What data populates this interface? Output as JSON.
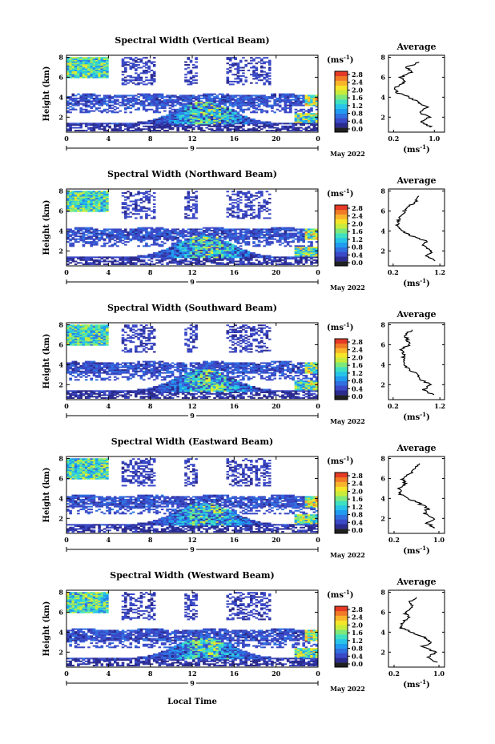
{
  "figure": {
    "xlabel": "Local Time",
    "day_label": "9",
    "date_label": "May 2022"
  },
  "colors": {
    "scale": [
      "#202020",
      "#2b2b8f",
      "#3a49c6",
      "#2f6fe0",
      "#1f9bef",
      "#28c4e8",
      "#3fe0c0",
      "#7ee87a",
      "#c8ec3c",
      "#f5e62a",
      "#f8b42a",
      "#f07a25",
      "#e53a25"
    ]
  },
  "chart_data": [
    {
      "type": "heatmap",
      "title": "Spectral Width (Vertical Beam)",
      "ylabel": "Height (km)",
      "x_ticks": [
        "0",
        "4",
        "8",
        "12",
        "16",
        "20",
        "0"
      ],
      "xlim": [
        0,
        24
      ],
      "y_ticks": [
        "2",
        "4",
        "6",
        "8"
      ],
      "ylim": [
        0.5,
        8.2
      ],
      "colorbar": {
        "unit": "(ms",
        "unit_exp": "-1",
        "unit_close": ")",
        "ticks": [
          "0.0",
          "0.4",
          "0.8",
          "1.2",
          "1.6",
          "2.0",
          "2.4",
          "2.8"
        ]
      },
      "profile": {
        "title": "Average",
        "xlabel": "(ms",
        "xlabel_exp": "-1",
        "xlabel_close": ")",
        "x_ticks": [
          "0.2",
          "1.0"
        ],
        "x_tick_values": [
          0.2,
          1.0
        ],
        "xlim": [
          0.1,
          1.2
        ],
        "y_ticks": [
          "2",
          "4",
          "6",
          "8"
        ],
        "ylim": [
          0.5,
          8.2
        ],
        "heights": [
          1.0,
          1.5,
          2.0,
          2.5,
          3.0,
          3.5,
          4.0,
          4.5,
          5.0,
          5.5,
          6.0,
          6.5,
          7.0,
          7.5
        ],
        "values": [
          0.95,
          0.75,
          0.9,
          0.7,
          0.85,
          0.7,
          0.5,
          0.25,
          0.25,
          0.4,
          0.35,
          0.55,
          0.45,
          0.7
        ]
      }
    },
    {
      "type": "heatmap",
      "title": "Spectral Width (Northward Beam)",
      "ylabel": "Height (km)",
      "x_ticks": [
        "0",
        "4",
        "8",
        "12",
        "16",
        "20",
        "0"
      ],
      "xlim": [
        0,
        24
      ],
      "y_ticks": [
        "2",
        "4",
        "6",
        "8"
      ],
      "ylim": [
        0.5,
        8.2
      ],
      "colorbar": {
        "unit": "(ms",
        "unit_exp": "-1",
        "unit_close": ")",
        "ticks": [
          "0.0",
          "0.4",
          "0.8",
          "1.2",
          "1.6",
          "2.0",
          "2.4",
          "2.8"
        ]
      },
      "profile": {
        "title": "Average",
        "xlabel": "(ms",
        "xlabel_exp": "-1",
        "xlabel_close": ")",
        "x_ticks": [
          "0.2",
          "1.2"
        ],
        "x_tick_values": [
          0.2,
          1.2
        ],
        "xlim": [
          0.1,
          1.3
        ],
        "y_ticks": [
          "2",
          "4",
          "6",
          "8"
        ],
        "ylim": [
          0.5,
          8.2
        ],
        "heights": [
          1.0,
          1.5,
          2.0,
          2.5,
          3.0,
          3.5,
          4.0,
          4.5,
          5.0,
          5.5,
          6.0,
          6.5,
          7.0,
          7.5
        ],
        "values": [
          1.1,
          0.9,
          1.05,
          0.85,
          0.9,
          0.6,
          0.4,
          0.3,
          0.3,
          0.35,
          0.45,
          0.55,
          0.7,
          0.75
        ]
      }
    },
    {
      "type": "heatmap",
      "title": "Spectral Width (Southward Beam)",
      "ylabel": "Height (km)",
      "x_ticks": [
        "0",
        "4",
        "8",
        "12",
        "16",
        "20",
        "0"
      ],
      "xlim": [
        0,
        24
      ],
      "y_ticks": [
        "2",
        "4",
        "6",
        "8"
      ],
      "ylim": [
        0.5,
        8.2
      ],
      "colorbar": {
        "unit": "(ms",
        "unit_exp": "-1",
        "unit_close": ")",
        "ticks": [
          "0.0",
          "0.4",
          "0.8",
          "1.2",
          "1.6",
          "2.0",
          "2.4",
          "2.8"
        ]
      },
      "profile": {
        "title": "Average",
        "xlabel": "(ms",
        "xlabel_exp": "-1",
        "xlabel_close": ")",
        "x_ticks": [
          "0.2",
          "1.2"
        ],
        "x_tick_values": [
          0.2,
          1.2
        ],
        "xlim": [
          0.1,
          1.3
        ],
        "y_ticks": [
          "2",
          "4",
          "6",
          "8"
        ],
        "ylim": [
          0.5,
          8.2
        ],
        "heights": [
          1.0,
          1.5,
          2.0,
          2.5,
          3.0,
          3.5,
          4.0,
          4.5,
          5.0,
          5.5,
          6.0,
          6.5,
          7.0,
          7.5
        ],
        "values": [
          1.05,
          0.85,
          1.0,
          0.8,
          0.75,
          0.55,
          0.45,
          0.4,
          0.45,
          0.35,
          0.55,
          0.5,
          0.45,
          0.6
        ]
      }
    },
    {
      "type": "heatmap",
      "title": "Spectral Width (Eastward Beam)",
      "ylabel": "Height (km)",
      "x_ticks": [
        "0",
        "4",
        "8",
        "12",
        "16",
        "20",
        "0"
      ],
      "xlim": [
        0,
        24
      ],
      "y_ticks": [
        "2",
        "4",
        "6",
        "8"
      ],
      "ylim": [
        0.5,
        8.2
      ],
      "colorbar": {
        "unit": "(ms",
        "unit_exp": "-1",
        "unit_close": ")",
        "ticks": [
          "0.0",
          "0.4",
          "0.8",
          "1.2",
          "1.6",
          "2.0",
          "2.4",
          "2.8"
        ]
      },
      "profile": {
        "title": "Average",
        "xlabel": "(ms",
        "xlabel_exp": "-1",
        "xlabel_close": ")",
        "x_ticks": [
          "0.2",
          "1.0"
        ],
        "x_tick_values": [
          0.2,
          1.0
        ],
        "xlim": [
          0.1,
          1.1
        ],
        "y_ticks": [
          "2",
          "4",
          "6",
          "8"
        ],
        "ylim": [
          0.5,
          8.2
        ],
        "heights": [
          1.0,
          1.5,
          2.0,
          2.5,
          3.0,
          3.5,
          4.0,
          4.5,
          5.0,
          5.5,
          6.0,
          6.5,
          7.0,
          7.5
        ],
        "values": [
          0.95,
          0.8,
          0.9,
          0.75,
          0.8,
          0.65,
          0.45,
          0.3,
          0.3,
          0.4,
          0.35,
          0.5,
          0.55,
          0.65
        ]
      }
    },
    {
      "type": "heatmap",
      "title": "Spectral Width (Westward Beam)",
      "ylabel": "Height (km)",
      "x_ticks": [
        "0",
        "4",
        "8",
        "12",
        "16",
        "20",
        "0"
      ],
      "xlim": [
        0,
        24
      ],
      "y_ticks": [
        "2",
        "4",
        "6",
        "8"
      ],
      "ylim": [
        0.5,
        8.2
      ],
      "colorbar": {
        "unit": "(ms",
        "unit_exp": "-1",
        "unit_close": ")",
        "ticks": [
          "0.0",
          "0.4",
          "0.8",
          "1.2",
          "1.6",
          "2.0",
          "2.4",
          "2.8"
        ]
      },
      "profile": {
        "title": "Average",
        "xlabel": "(ms",
        "xlabel_exp": "-1",
        "xlabel_close": ")",
        "x_ticks": [
          "0.2",
          "1.0"
        ],
        "x_tick_values": [
          0.2,
          1.0
        ],
        "xlim": [
          0.1,
          1.1
        ],
        "y_ticks": [
          "2",
          "4",
          "6",
          "8"
        ],
        "ylim": [
          0.5,
          8.2
        ],
        "heights": [
          1.0,
          1.5,
          2.0,
          2.5,
          3.0,
          3.5,
          4.0,
          4.5,
          5.0,
          5.5,
          6.0,
          6.5,
          7.0,
          7.5
        ],
        "values": [
          0.95,
          0.8,
          0.95,
          0.7,
          0.85,
          0.75,
          0.5,
          0.3,
          0.35,
          0.45,
          0.4,
          0.55,
          0.45,
          0.6
        ]
      }
    }
  ]
}
